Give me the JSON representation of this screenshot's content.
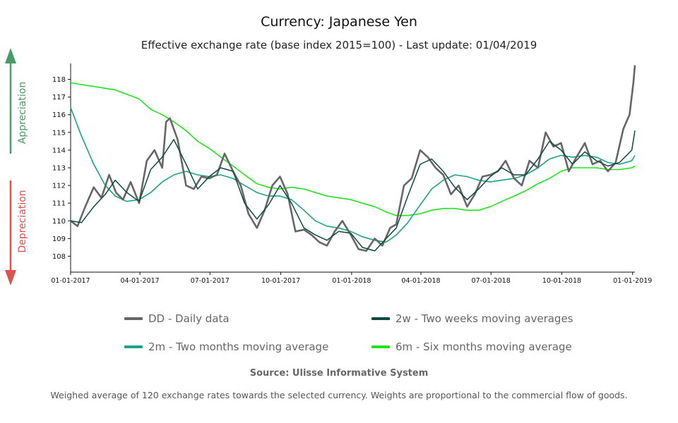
{
  "chart_data": {
    "type": "line",
    "title": "Currency: Japanese Yen",
    "subtitle": "Effective exchange rate (base index 2015=100) - Last update: 01/04/2019",
    "side_labels": {
      "up": "Appreciation",
      "down": "Depreciation"
    },
    "x_ticks": [
      "01-01-2017",
      "04-01-2017",
      "07-01-2017",
      "10-01-2017",
      "01-01-2018",
      "04-01-2018",
      "07-01-2018",
      "10-01-2018",
      "01-01-2019"
    ],
    "x_range": [
      "2017-01-01",
      "2019-01-04"
    ],
    "y_ticks": [
      108,
      109,
      110,
      111,
      112,
      113,
      114,
      115,
      116,
      117,
      118
    ],
    "ylim": [
      107.1,
      118.9
    ],
    "grid": false,
    "legend_position": "bottom",
    "colors": {
      "dd": "#666666",
      "w2": "#0d4a3e",
      "m2": "#1aa385",
      "m6": "#22e21f",
      "up_arrow": "#4a9a6a",
      "down_arrow": "#d9534f"
    },
    "series": [
      {
        "key": "dd",
        "name": "DD - Daily data",
        "points": [
          [
            "2017-01-01",
            110.0
          ],
          [
            "2017-01-10",
            109.7
          ],
          [
            "2017-01-20",
            110.8
          ],
          [
            "2017-01-31",
            111.9
          ],
          [
            "2017-02-10",
            111.3
          ],
          [
            "2017-02-20",
            112.6
          ],
          [
            "2017-03-01",
            111.6
          ],
          [
            "2017-03-10",
            111.2
          ],
          [
            "2017-03-20",
            112.2
          ],
          [
            "2017-03-31",
            111.0
          ],
          [
            "2017-04-10",
            113.4
          ],
          [
            "2017-04-20",
            114.0
          ],
          [
            "2017-04-30",
            113.0
          ],
          [
            "2017-05-05",
            115.6
          ],
          [
            "2017-05-10",
            115.8
          ],
          [
            "2017-05-20",
            114.6
          ],
          [
            "2017-05-31",
            112.0
          ],
          [
            "2017-06-10",
            111.8
          ],
          [
            "2017-06-20",
            112.5
          ],
          [
            "2017-06-30",
            112.4
          ],
          [
            "2017-07-10",
            112.6
          ],
          [
            "2017-07-20",
            113.8
          ],
          [
            "2017-07-31",
            112.8
          ],
          [
            "2017-08-10",
            112.0
          ],
          [
            "2017-08-20",
            110.4
          ],
          [
            "2017-08-31",
            109.6
          ],
          [
            "2017-09-10",
            110.6
          ],
          [
            "2017-09-20",
            112.0
          ],
          [
            "2017-09-30",
            112.5
          ],
          [
            "2017-10-10",
            111.5
          ],
          [
            "2017-10-20",
            109.4
          ],
          [
            "2017-10-31",
            109.5
          ],
          [
            "2017-11-10",
            109.2
          ],
          [
            "2017-11-20",
            108.8
          ],
          [
            "2017-11-30",
            108.6
          ],
          [
            "2017-12-10",
            109.4
          ],
          [
            "2017-12-20",
            110.0
          ],
          [
            "2017-12-31",
            109.2
          ],
          [
            "2018-01-10",
            108.4
          ],
          [
            "2018-01-20",
            108.3
          ],
          [
            "2018-01-31",
            109.0
          ],
          [
            "2018-02-10",
            108.6
          ],
          [
            "2018-02-20",
            109.6
          ],
          [
            "2018-02-28",
            109.8
          ],
          [
            "2018-03-10",
            112.0
          ],
          [
            "2018-03-20",
            112.4
          ],
          [
            "2018-03-31",
            114.0
          ],
          [
            "2018-04-10",
            113.6
          ],
          [
            "2018-04-20",
            113.0
          ],
          [
            "2018-04-30",
            112.6
          ],
          [
            "2018-05-10",
            111.5
          ],
          [
            "2018-05-20",
            112.0
          ],
          [
            "2018-05-31",
            110.8
          ],
          [
            "2018-06-10",
            111.5
          ],
          [
            "2018-06-20",
            112.5
          ],
          [
            "2018-06-30",
            112.6
          ],
          [
            "2018-07-10",
            112.8
          ],
          [
            "2018-07-20",
            113.4
          ],
          [
            "2018-07-31",
            112.4
          ],
          [
            "2018-08-10",
            112.0
          ],
          [
            "2018-08-20",
            113.4
          ],
          [
            "2018-08-31",
            113.0
          ],
          [
            "2018-09-10",
            115.0
          ],
          [
            "2018-09-20",
            114.2
          ],
          [
            "2018-09-30",
            114.4
          ],
          [
            "2018-10-10",
            112.8
          ],
          [
            "2018-10-20",
            113.6
          ],
          [
            "2018-10-31",
            114.4
          ],
          [
            "2018-11-10",
            113.2
          ],
          [
            "2018-11-20",
            113.4
          ],
          [
            "2018-11-30",
            112.8
          ],
          [
            "2018-12-10",
            113.3
          ],
          [
            "2018-12-20",
            115.2
          ],
          [
            "2018-12-28",
            116.0
          ],
          [
            "2019-01-02",
            117.8
          ],
          [
            "2019-01-04",
            118.8
          ]
        ]
      },
      {
        "key": "w2",
        "name": "2w - Two weeks moving averages",
        "points": [
          [
            "2017-01-01",
            110.0
          ],
          [
            "2017-01-15",
            109.9
          ],
          [
            "2017-01-31",
            110.8
          ],
          [
            "2017-02-15",
            111.5
          ],
          [
            "2017-02-28",
            112.3
          ],
          [
            "2017-03-15",
            111.6
          ],
          [
            "2017-03-31",
            111.1
          ],
          [
            "2017-04-15",
            112.9
          ],
          [
            "2017-04-30",
            113.6
          ],
          [
            "2017-05-15",
            114.6
          ],
          [
            "2017-05-31",
            113.2
          ],
          [
            "2017-06-15",
            111.8
          ],
          [
            "2017-06-30",
            112.5
          ],
          [
            "2017-07-15",
            113.0
          ],
          [
            "2017-07-31",
            112.8
          ],
          [
            "2017-08-15",
            111.0
          ],
          [
            "2017-08-31",
            110.1
          ],
          [
            "2017-09-15",
            110.9
          ],
          [
            "2017-09-30",
            112.0
          ],
          [
            "2017-10-15",
            111.0
          ],
          [
            "2017-10-31",
            109.6
          ],
          [
            "2017-11-15",
            109.2
          ],
          [
            "2017-11-30",
            108.9
          ],
          [
            "2017-12-15",
            109.4
          ],
          [
            "2017-12-31",
            109.3
          ],
          [
            "2018-01-15",
            108.5
          ],
          [
            "2018-01-31",
            108.3
          ],
          [
            "2018-02-15",
            109.0
          ],
          [
            "2018-02-28",
            109.6
          ],
          [
            "2018-03-15",
            111.4
          ],
          [
            "2018-03-31",
            113.2
          ],
          [
            "2018-04-15",
            113.5
          ],
          [
            "2018-04-30",
            112.8
          ],
          [
            "2018-05-15",
            111.9
          ],
          [
            "2018-05-31",
            111.2
          ],
          [
            "2018-06-15",
            111.8
          ],
          [
            "2018-06-30",
            112.5
          ],
          [
            "2018-07-15",
            113.0
          ],
          [
            "2018-07-31",
            112.6
          ],
          [
            "2018-08-15",
            112.6
          ],
          [
            "2018-08-31",
            113.5
          ],
          [
            "2018-09-15",
            114.5
          ],
          [
            "2018-09-30",
            114.0
          ],
          [
            "2018-10-15",
            113.2
          ],
          [
            "2018-10-31",
            113.9
          ],
          [
            "2018-11-15",
            113.4
          ],
          [
            "2018-11-30",
            113.1
          ],
          [
            "2018-12-15",
            113.3
          ],
          [
            "2018-12-31",
            114.0
          ],
          [
            "2019-01-04",
            115.1
          ]
        ]
      },
      {
        "key": "m2",
        "name": "2m - Two months moving average",
        "points": [
          [
            "2017-01-01",
            116.4
          ],
          [
            "2017-01-15",
            114.8
          ],
          [
            "2017-01-31",
            113.2
          ],
          [
            "2017-02-15",
            112.0
          ],
          [
            "2017-02-28",
            111.4
          ],
          [
            "2017-03-15",
            111.1
          ],
          [
            "2017-03-31",
            111.2
          ],
          [
            "2017-04-15",
            111.6
          ],
          [
            "2017-04-30",
            112.2
          ],
          [
            "2017-05-15",
            112.6
          ],
          [
            "2017-05-31",
            112.8
          ],
          [
            "2017-06-15",
            112.6
          ],
          [
            "2017-06-30",
            112.5
          ],
          [
            "2017-07-15",
            112.6
          ],
          [
            "2017-07-31",
            112.4
          ],
          [
            "2017-08-15",
            112.0
          ],
          [
            "2017-08-31",
            111.6
          ],
          [
            "2017-09-15",
            111.4
          ],
          [
            "2017-09-30",
            111.4
          ],
          [
            "2017-10-15",
            111.2
          ],
          [
            "2017-10-31",
            110.6
          ],
          [
            "2017-11-15",
            110.0
          ],
          [
            "2017-11-30",
            109.7
          ],
          [
            "2017-12-15",
            109.6
          ],
          [
            "2017-12-31",
            109.4
          ],
          [
            "2018-01-15",
            109.1
          ],
          [
            "2018-01-31",
            108.9
          ],
          [
            "2018-02-15",
            108.8
          ],
          [
            "2018-02-28",
            109.2
          ],
          [
            "2018-03-15",
            109.9
          ],
          [
            "2018-03-31",
            110.9
          ],
          [
            "2018-04-15",
            111.8
          ],
          [
            "2018-04-30",
            112.3
          ],
          [
            "2018-05-15",
            112.6
          ],
          [
            "2018-05-31",
            112.5
          ],
          [
            "2018-06-15",
            112.3
          ],
          [
            "2018-06-30",
            112.2
          ],
          [
            "2018-07-15",
            112.3
          ],
          [
            "2018-07-31",
            112.4
          ],
          [
            "2018-08-15",
            112.6
          ],
          [
            "2018-08-31",
            113.0
          ],
          [
            "2018-09-15",
            113.5
          ],
          [
            "2018-09-30",
            113.7
          ],
          [
            "2018-10-15",
            113.6
          ],
          [
            "2018-10-31",
            113.7
          ],
          [
            "2018-11-15",
            113.6
          ],
          [
            "2018-11-30",
            113.3
          ],
          [
            "2018-12-15",
            113.2
          ],
          [
            "2018-12-31",
            113.4
          ],
          [
            "2019-01-04",
            113.7
          ]
        ]
      },
      {
        "key": "m6",
        "name": "6m - Six months moving average",
        "points": [
          [
            "2017-01-01",
            117.8
          ],
          [
            "2017-01-31",
            117.6
          ],
          [
            "2017-02-28",
            117.4
          ],
          [
            "2017-03-31",
            116.9
          ],
          [
            "2017-04-15",
            116.3
          ],
          [
            "2017-04-30",
            116.0
          ],
          [
            "2017-05-15",
            115.6
          ],
          [
            "2017-05-31",
            115.1
          ],
          [
            "2017-06-15",
            114.5
          ],
          [
            "2017-06-30",
            114.1
          ],
          [
            "2017-07-15",
            113.6
          ],
          [
            "2017-07-31",
            113.1
          ],
          [
            "2017-08-15",
            112.6
          ],
          [
            "2017-08-31",
            112.1
          ],
          [
            "2017-09-15",
            111.9
          ],
          [
            "2017-09-30",
            111.8
          ],
          [
            "2017-10-15",
            111.9
          ],
          [
            "2017-10-31",
            111.8
          ],
          [
            "2017-11-15",
            111.6
          ],
          [
            "2017-11-30",
            111.4
          ],
          [
            "2017-12-15",
            111.3
          ],
          [
            "2017-12-31",
            111.2
          ],
          [
            "2018-01-15",
            111.0
          ],
          [
            "2018-01-31",
            110.8
          ],
          [
            "2018-02-15",
            110.5
          ],
          [
            "2018-02-28",
            110.3
          ],
          [
            "2018-03-15",
            110.3
          ],
          [
            "2018-03-31",
            110.4
          ],
          [
            "2018-04-15",
            110.6
          ],
          [
            "2018-04-30",
            110.7
          ],
          [
            "2018-05-15",
            110.7
          ],
          [
            "2018-05-31",
            110.6
          ],
          [
            "2018-06-15",
            110.6
          ],
          [
            "2018-06-30",
            110.8
          ],
          [
            "2018-07-15",
            111.1
          ],
          [
            "2018-07-31",
            111.4
          ],
          [
            "2018-08-15",
            111.7
          ],
          [
            "2018-08-31",
            112.1
          ],
          [
            "2018-09-15",
            112.4
          ],
          [
            "2018-09-30",
            112.8
          ],
          [
            "2018-10-15",
            113.0
          ],
          [
            "2018-10-31",
            113.0
          ],
          [
            "2018-11-15",
            113.0
          ],
          [
            "2018-11-30",
            112.9
          ],
          [
            "2018-12-15",
            112.9
          ],
          [
            "2018-12-31",
            113.0
          ],
          [
            "2019-01-04",
            113.1
          ]
        ]
      }
    ]
  },
  "footer": {
    "source": "Source: Ulisse Informative System",
    "note": "Weighed average of 120 exchange rates towards the selected currency. Weights are proportional to the commercial flow of goods."
  }
}
